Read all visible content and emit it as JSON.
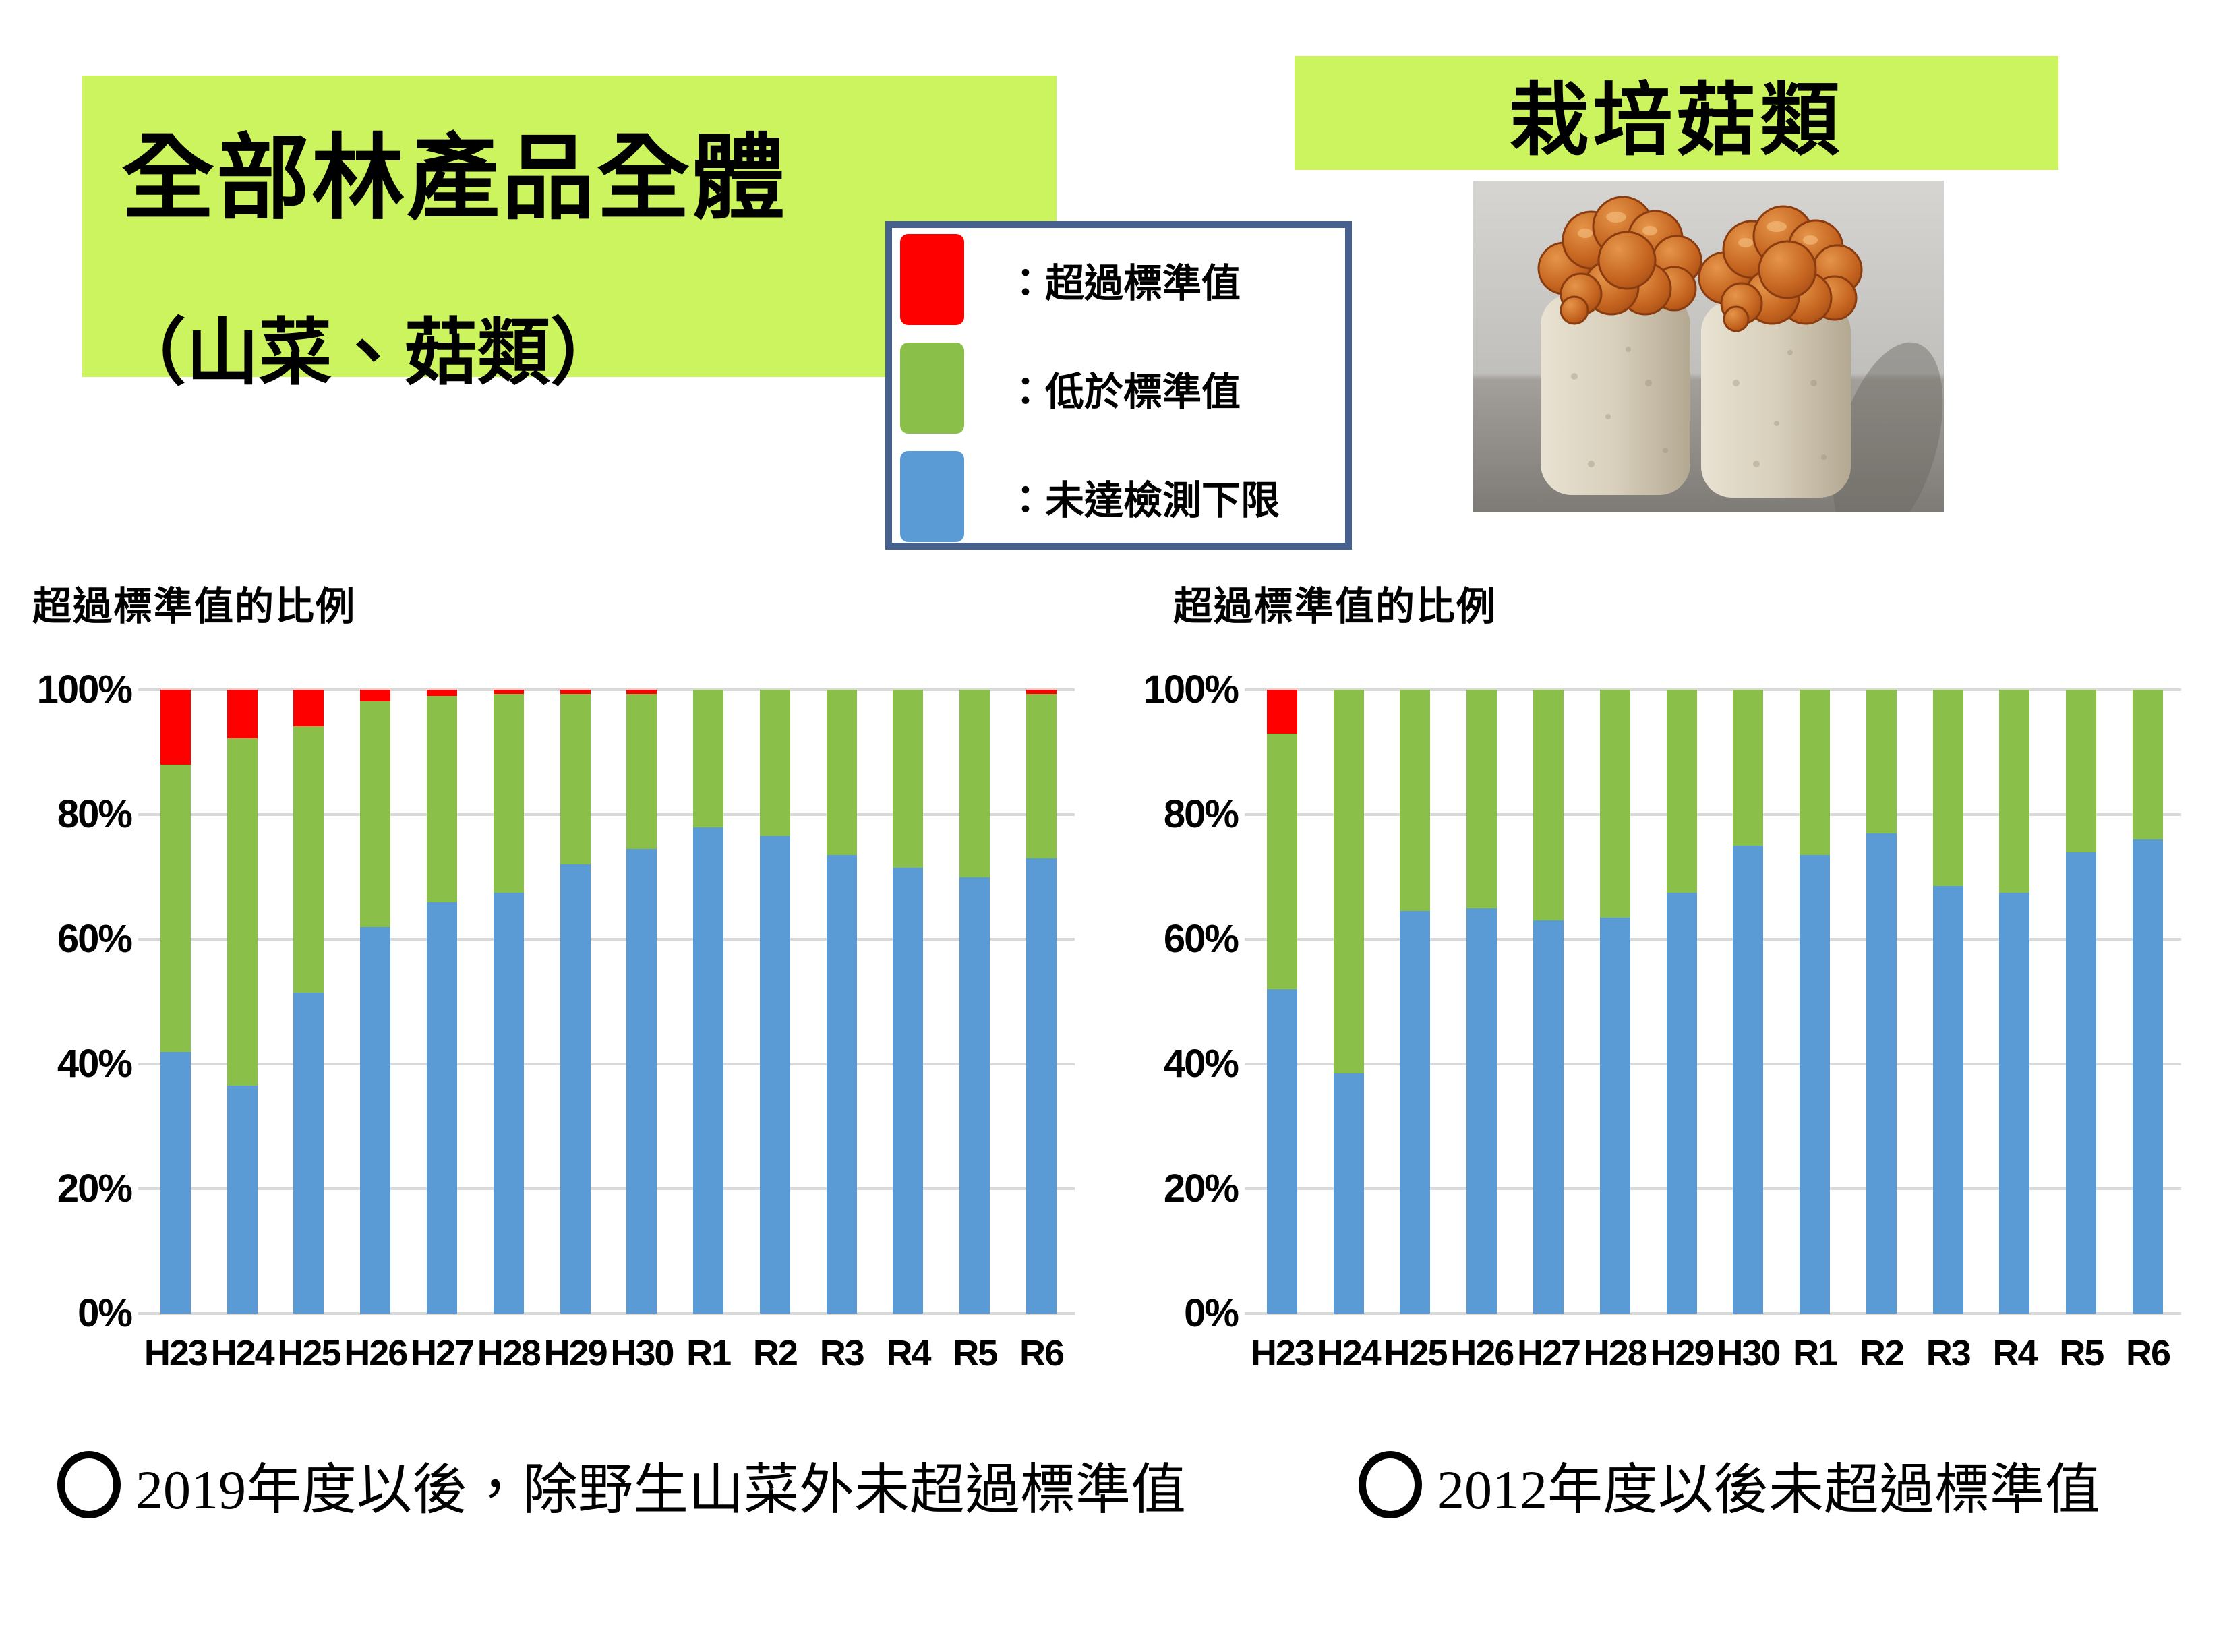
{
  "slide": {
    "background": "#ffffff"
  },
  "colors": {
    "highlight_green": "#cbf45e",
    "legend_border": "#47618e",
    "bar_red": "#ff0000",
    "bar_green": "#8ac04a",
    "bar_blue": "#5b9bd5",
    "gridline": "#d9d9d9"
  },
  "title_box": {
    "line1": "全部林產品全體",
    "line2": "（山菜、菇類）"
  },
  "right_box": {
    "title": "栽培菇類"
  },
  "legend": {
    "items": [
      {
        "label": "：超過標準值",
        "color": "#ff0000"
      },
      {
        "label": "：低於標準值",
        "color": "#8ac04a"
      },
      {
        "label": "：未達檢測下限",
        "color": "#5b9bd5"
      }
    ]
  },
  "footnotes": [
    {
      "bullet": "○",
      "text": "2019年度以後，除野生山菜外未超過標準值"
    },
    {
      "bullet": "○",
      "text": "2012年度以後未超過標準值"
    }
  ],
  "chart_data": [
    {
      "type": "bar",
      "stacked": true,
      "title": "超過標準值的比例",
      "group": "全部林產品全體（山菜、菇類）",
      "categories": [
        "H23",
        "H24",
        "H25",
        "H26",
        "H27",
        "H28",
        "H29",
        "H30",
        "R1",
        "R2",
        "R3",
        "R4",
        "R5",
        "R6"
      ],
      "series": [
        {
          "name": "未達檢測下限",
          "color": "#5b9bd5",
          "values": [
            42,
            36.5,
            51.5,
            62,
            66,
            67.5,
            72,
            74.5,
            78,
            76.5,
            73.5,
            71.5,
            70,
            73
          ]
        },
        {
          "name": "低於標準值",
          "color": "#8ac04a",
          "values": [
            46,
            55.7,
            42.7,
            36.2,
            33,
            31.8,
            27.3,
            24.8,
            22,
            23.5,
            26.5,
            28.5,
            30,
            26.4
          ]
        },
        {
          "name": "超過標準值",
          "color": "#ff0000",
          "values": [
            12,
            7.8,
            5.8,
            1.8,
            1,
            0.7,
            0.7,
            0.7,
            0,
            0,
            0,
            0,
            0,
            0.6
          ]
        }
      ],
      "ylim": [
        0,
        100
      ],
      "yticks": [
        "0%",
        "20%",
        "40%",
        "60%",
        "80%",
        "100%"
      ],
      "grid": true
    },
    {
      "type": "bar",
      "stacked": true,
      "title": "超過標準值的比例",
      "group": "栽培菇類",
      "categories": [
        "H23",
        "H24",
        "H25",
        "H26",
        "H27",
        "H28",
        "H29",
        "H30",
        "R1",
        "R2",
        "R3",
        "R4",
        "R5",
        "R6"
      ],
      "series": [
        {
          "name": "未達檢測下限",
          "color": "#5b9bd5",
          "values": [
            52,
            38.5,
            64.5,
            65,
            63,
            63.5,
            67.5,
            75,
            73.5,
            77,
            68.5,
            67.5,
            74,
            76
          ]
        },
        {
          "name": "低於標準值",
          "color": "#8ac04a",
          "values": [
            41,
            61.5,
            35.5,
            35,
            37,
            36.5,
            32.5,
            25,
            26.5,
            23,
            31.5,
            32.5,
            26,
            24
          ]
        },
        {
          "name": "超過標準值",
          "color": "#ff0000",
          "values": [
            7,
            0,
            0,
            0,
            0,
            0,
            0,
            0,
            0,
            0,
            0,
            0,
            0,
            0
          ]
        }
      ],
      "ylim": [
        0,
        100
      ],
      "yticks": [
        "0%",
        "20%",
        "40%",
        "60%",
        "80%",
        "100%"
      ],
      "grid": true
    }
  ]
}
